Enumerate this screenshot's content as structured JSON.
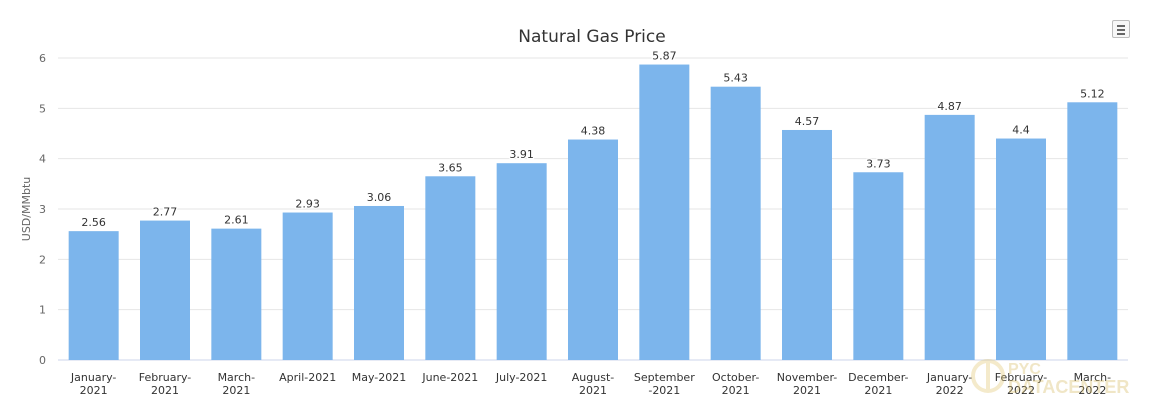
{
  "chart_data": {
    "type": "bar",
    "title": "Natural Gas Price",
    "ylabel": "USD/MMbtu",
    "xlabel": "",
    "ylim": [
      0,
      6
    ],
    "y_ticks": [
      "0",
      "1",
      "2",
      "3",
      "4",
      "5",
      "6"
    ],
    "grid": true,
    "legend": "none",
    "categories": [
      [
        "January-",
        "2021"
      ],
      [
        "February-",
        "2021"
      ],
      [
        "March-",
        "2021"
      ],
      [
        "April-2021"
      ],
      [
        "May-2021"
      ],
      [
        "June-2021"
      ],
      [
        "July-2021"
      ],
      [
        "August-",
        "2021"
      ],
      [
        "September",
        "-2021"
      ],
      [
        "October-",
        "2021"
      ],
      [
        "November-",
        "2021"
      ],
      [
        "December-",
        "2021"
      ],
      [
        "January-",
        "2022"
      ],
      [
        "February-",
        "2022"
      ],
      [
        "March-",
        "2022"
      ]
    ],
    "values": [
      2.56,
      2.77,
      2.61,
      2.93,
      3.06,
      3.65,
      3.91,
      4.38,
      5.87,
      5.43,
      4.57,
      3.73,
      4.87,
      4.4,
      5.12
    ],
    "value_labels": [
      "2.56",
      "2.77",
      "2.61",
      "2.93",
      "3.06",
      "3.65",
      "3.91",
      "4.38",
      "5.87",
      "5.43",
      "4.57",
      "3.73",
      "4.87",
      "4.4",
      "5.12"
    ],
    "bar_color": "#7cb5ec",
    "grid_color": "#e6e6e6",
    "text_color": "#333333"
  },
  "watermark": {
    "line1": "PYC",
    "line2": "DATACENTER"
  },
  "menu": {
    "icon": "hamburger-menu-icon"
  }
}
